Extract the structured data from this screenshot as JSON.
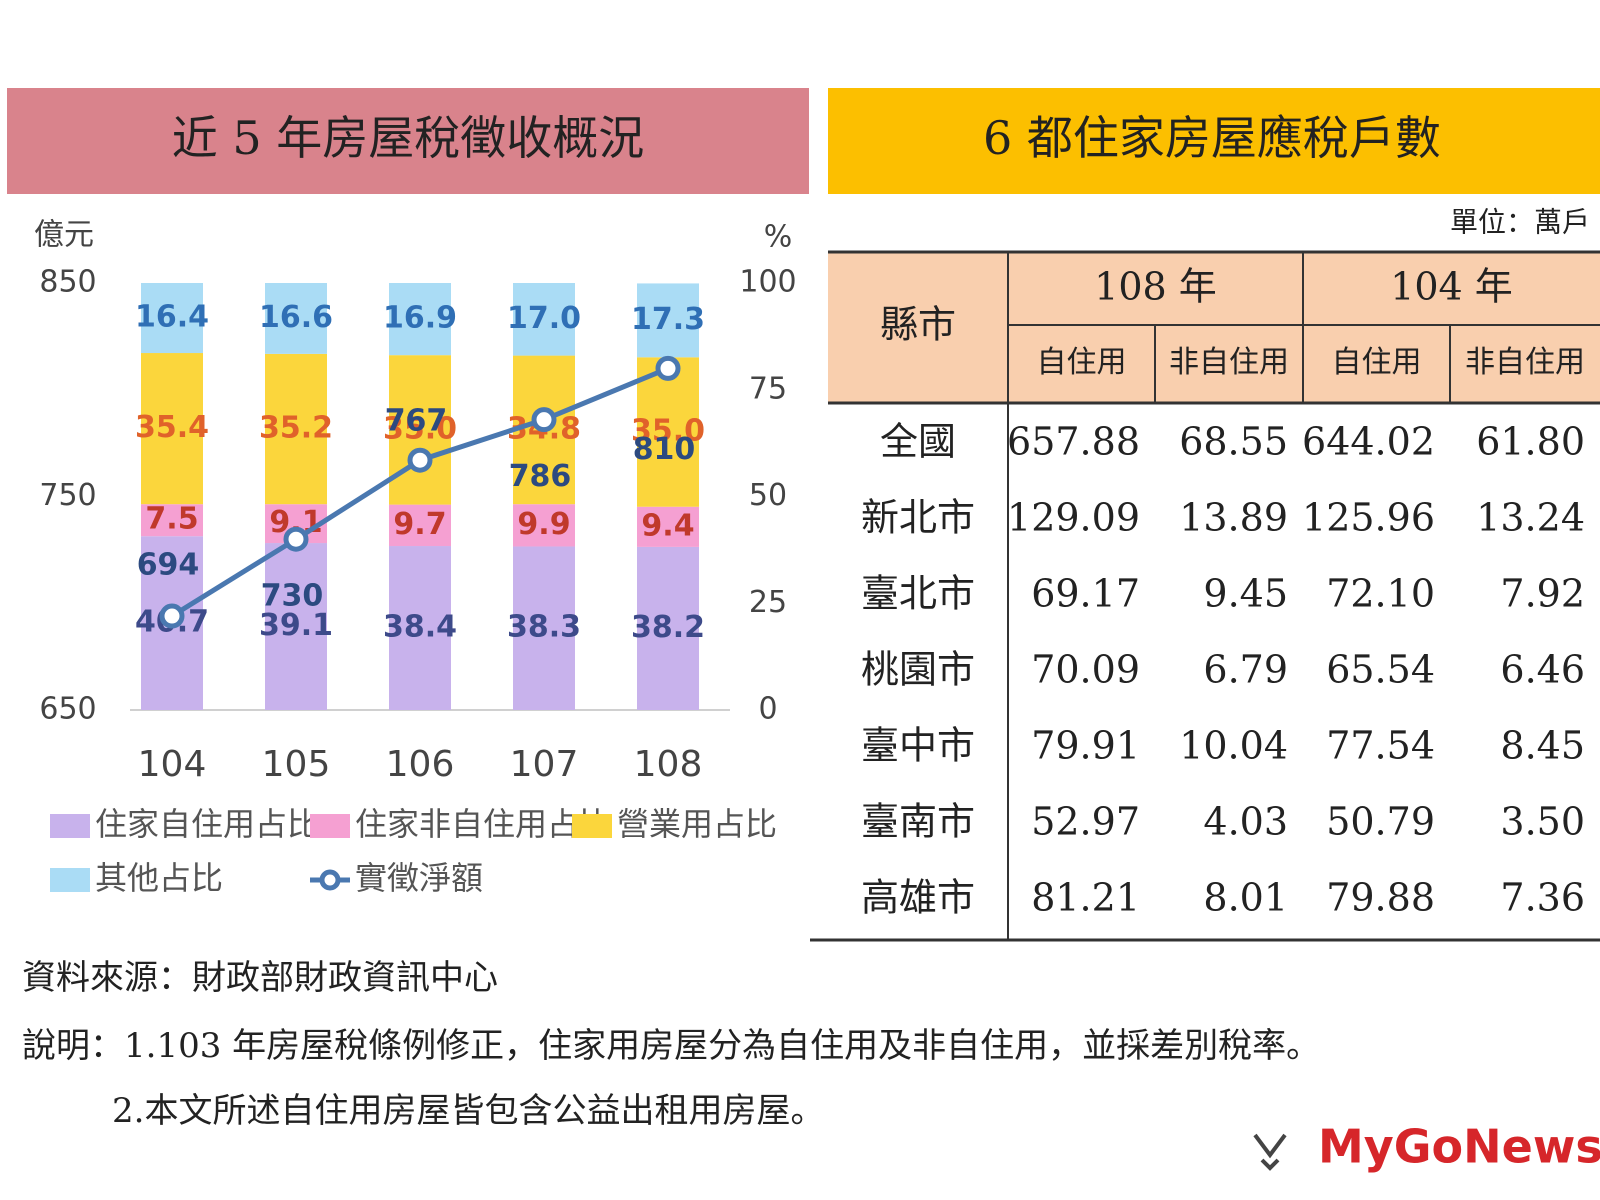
{
  "chart_data": {
    "type": "bar",
    "title": "近 5 年房屋稅徵收概況",
    "y_label": "億元",
    "y2_label": "%",
    "categories": [
      "104",
      "105",
      "106",
      "107",
      "108"
    ],
    "ylim": [
      650,
      850
    ],
    "yticks": [
      650,
      750,
      850
    ],
    "y2lim": [
      0,
      100
    ],
    "y2ticks": [
      0,
      25,
      50,
      75,
      100
    ],
    "series": [
      {
        "name": "住家自住用占比",
        "type": "bar",
        "axis": "y2",
        "color": "#c8b2ec",
        "label_color": "#3d4a8a",
        "values": [
          40.7,
          39.1,
          38.4,
          38.3,
          38.2
        ],
        "value_labels": [
          "40.7",
          "39.1",
          "38.4",
          "38.3",
          "38.2"
        ]
      },
      {
        "name": "住家非自住用占比",
        "type": "bar",
        "axis": "y2",
        "color": "#f5a0d2",
        "label_color": "#c0392b",
        "values": [
          7.5,
          9.1,
          9.7,
          9.9,
          9.4
        ],
        "value_labels": [
          "7.5",
          "9.1",
          "9.7",
          "9.9",
          "9.4"
        ]
      },
      {
        "name": "營業用占比",
        "type": "bar",
        "axis": "y2",
        "color": "#fbd63c",
        "label_color": "#e0622a",
        "values": [
          35.4,
          35.2,
          35.0,
          34.8,
          35.0
        ],
        "value_labels": [
          "35.4",
          "35.2",
          "35.0",
          "34.8",
          "35.0"
        ]
      },
      {
        "name": "其他占比",
        "type": "bar",
        "axis": "y2",
        "color": "#aadcf5",
        "label_color": "#2f6fb5",
        "values": [
          16.4,
          16.6,
          16.9,
          17.0,
          17.3
        ],
        "value_labels": [
          "16.4",
          "16.6",
          "16.9",
          "17.0",
          "17.3"
        ]
      },
      {
        "name": "實徵淨額",
        "type": "line",
        "color": "#4a78b0",
        "label_color": "#2c4a80",
        "values": [
          694,
          730,
          767,
          786,
          810
        ]
      }
    ]
  },
  "table": {
    "title": "6 都住家房屋應稅戶數",
    "unit": "單位：萬戶",
    "region": "縣市",
    "years": [
      "108 年",
      "104 年"
    ],
    "sub": [
      "自住用",
      "非自住用",
      "自住用",
      "非自住用"
    ],
    "rows": [
      [
        "全國",
        "657.88",
        "68.55",
        "644.02",
        "61.80"
      ],
      [
        "新北市",
        "129.09",
        "13.89",
        "125.96",
        "13.24"
      ],
      [
        "臺北市",
        "69.17",
        "9.45",
        "72.10",
        "7.92"
      ],
      [
        "桃園市",
        "70.09",
        "6.79",
        "65.54",
        "6.46"
      ],
      [
        "臺中市",
        "79.91",
        "10.04",
        "77.54",
        "8.45"
      ],
      [
        "臺南市",
        "52.97",
        "4.03",
        "50.79",
        "3.50"
      ],
      [
        "高雄市",
        "81.21",
        "8.01",
        "79.88",
        "7.36"
      ]
    ]
  },
  "notes": {
    "source": "資料來源：財政部財政資訊中心",
    "lines": [
      "說明：1.103 年房屋稅條例修正，住家用房屋分為自住用及非自住用，並採差別稅率。",
      "2.本文所述自住用房屋皆包含公益出租用房屋。"
    ]
  },
  "logo": "MyGoNews"
}
